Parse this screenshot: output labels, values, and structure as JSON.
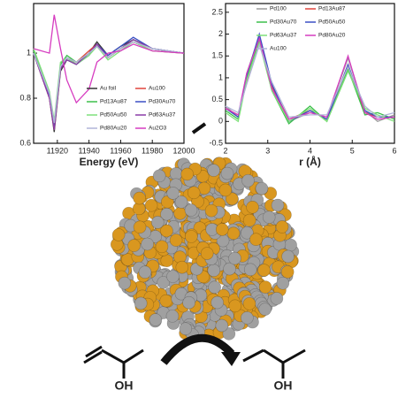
{
  "chart_data": [
    {
      "type": "line",
      "xlabel": "Energy (eV)",
      "x": [
        11905,
        11915,
        11918,
        11922,
        11926,
        11932,
        11940,
        11945,
        11952,
        11960,
        11968,
        11980,
        12000
      ],
      "xlim": [
        11905,
        12000
      ],
      "xticks": [
        11920,
        11940,
        11960,
        11980,
        12000
      ],
      "ylim": [
        0.6,
        1.22
      ],
      "yticks": [
        0.6,
        0.8,
        1.0
      ],
      "legend": "lower right",
      "series": [
        {
          "name": "Au foil",
          "color": "#333333",
          "values": [
            1.0,
            0.8,
            0.65,
            0.92,
            0.97,
            0.95,
            1.0,
            1.05,
            0.99,
            1.03,
            1.06,
            1.02,
            1.0
          ]
        },
        {
          "name": "Au100",
          "color": "#e0443c",
          "values": [
            1.0,
            0.8,
            0.66,
            0.93,
            0.98,
            0.96,
            1.01,
            1.04,
            0.98,
            1.02,
            1.05,
            1.01,
            1.0
          ]
        },
        {
          "name": "Pd13Au87",
          "color": "#3cbf4a",
          "values": [
            1.01,
            0.82,
            0.68,
            0.95,
            0.99,
            0.96,
            1.0,
            1.03,
            0.98,
            1.02,
            1.06,
            1.02,
            1.0
          ]
        },
        {
          "name": "Pd30Au70",
          "color": "#3a4fc4",
          "values": [
            1.0,
            0.81,
            0.67,
            0.94,
            0.98,
            0.95,
            0.99,
            1.04,
            0.99,
            1.03,
            1.07,
            1.02,
            1.0
          ]
        },
        {
          "name": "Pd50Au50",
          "color": "#7fe07a",
          "values": [
            1.02,
            0.83,
            0.7,
            0.96,
            0.98,
            0.95,
            0.99,
            1.03,
            0.97,
            1.01,
            1.05,
            1.01,
            1.0
          ]
        },
        {
          "name": "Pd63Au37",
          "color": "#8a3ca8",
          "values": [
            1.0,
            0.8,
            0.66,
            0.93,
            0.97,
            0.95,
            1.0,
            1.04,
            0.98,
            1.02,
            1.06,
            1.02,
            1.0
          ]
        },
        {
          "name": "Pd80Au20",
          "color": "#b0b4d8",
          "values": [
            1.0,
            0.82,
            0.69,
            0.94,
            0.98,
            0.96,
            1.0,
            1.03,
            0.98,
            1.02,
            1.05,
            1.02,
            1.0
          ]
        },
        {
          "name": "Au2O3",
          "color": "#d63cc0",
          "values": [
            1.02,
            1.0,
            1.17,
            1.02,
            0.88,
            0.78,
            0.84,
            0.96,
            1.0,
            1.01,
            1.04,
            1.01,
            1.0
          ]
        }
      ]
    },
    {
      "type": "line",
      "xlabel": "r (Å)",
      "x": [
        2,
        2.3,
        2.5,
        2.8,
        3.1,
        3.5,
        4.0,
        4.4,
        4.9,
        5.3,
        5.6,
        6.0
      ],
      "xlim": [
        2,
        6
      ],
      "xticks": [
        2,
        3,
        4,
        5,
        6
      ],
      "ylim": [
        -0.5,
        2.7
      ],
      "yticks": [
        -0.5,
        0.0,
        0.5,
        1.0,
        1.5,
        2.0,
        2.5
      ],
      "legend": "upper center",
      "series": [
        {
          "name": "Pd100",
          "color": "#9a9a9a",
          "values": [
            0.35,
            0.1,
            1.1,
            1.95,
            0.75,
            0.0,
            0.2,
            0.1,
            1.45,
            0.25,
            0.0,
            0.15
          ]
        },
        {
          "name": "Pd13Au87",
          "color": "#e0443c",
          "values": [
            0.3,
            0.15,
            0.9,
            1.9,
            0.8,
            0.05,
            0.25,
            0.05,
            1.3,
            0.2,
            0.1,
            0.1
          ]
        },
        {
          "name": "Pd30Au70",
          "color": "#3cbf4a",
          "values": [
            0.25,
            0.05,
            1.0,
            1.85,
            0.7,
            -0.05,
            0.35,
            0.0,
            1.2,
            0.15,
            0.2,
            0.05
          ]
        },
        {
          "name": "Pd50Au50",
          "color": "#3a4fc4",
          "values": [
            0.3,
            0.1,
            1.05,
            2.0,
            0.85,
            0.0,
            0.25,
            0.05,
            1.3,
            0.25,
            0.1,
            0.1
          ]
        },
        {
          "name": "Pd63Au37",
          "color": "#7fe07a",
          "values": [
            0.2,
            0.0,
            0.95,
            1.8,
            0.7,
            0.0,
            0.3,
            0.0,
            1.15,
            0.3,
            0.15,
            0.0
          ]
        },
        {
          "name": "Pd80Au20",
          "color": "#d63cc0",
          "values": [
            0.3,
            0.15,
            1.1,
            1.9,
            0.75,
            0.05,
            0.2,
            0.1,
            1.5,
            0.2,
            0.05,
            0.1
          ]
        },
        {
          "name": "Au100",
          "color": "#b0b4d8",
          "values": [
            0.35,
            0.2,
            0.85,
            1.75,
            0.9,
            0.1,
            0.15,
            0.15,
            1.25,
            0.35,
            0.1,
            0.2
          ]
        }
      ]
    }
  ],
  "scheme": {
    "reactant_label": "OH",
    "product_label": "OH"
  }
}
